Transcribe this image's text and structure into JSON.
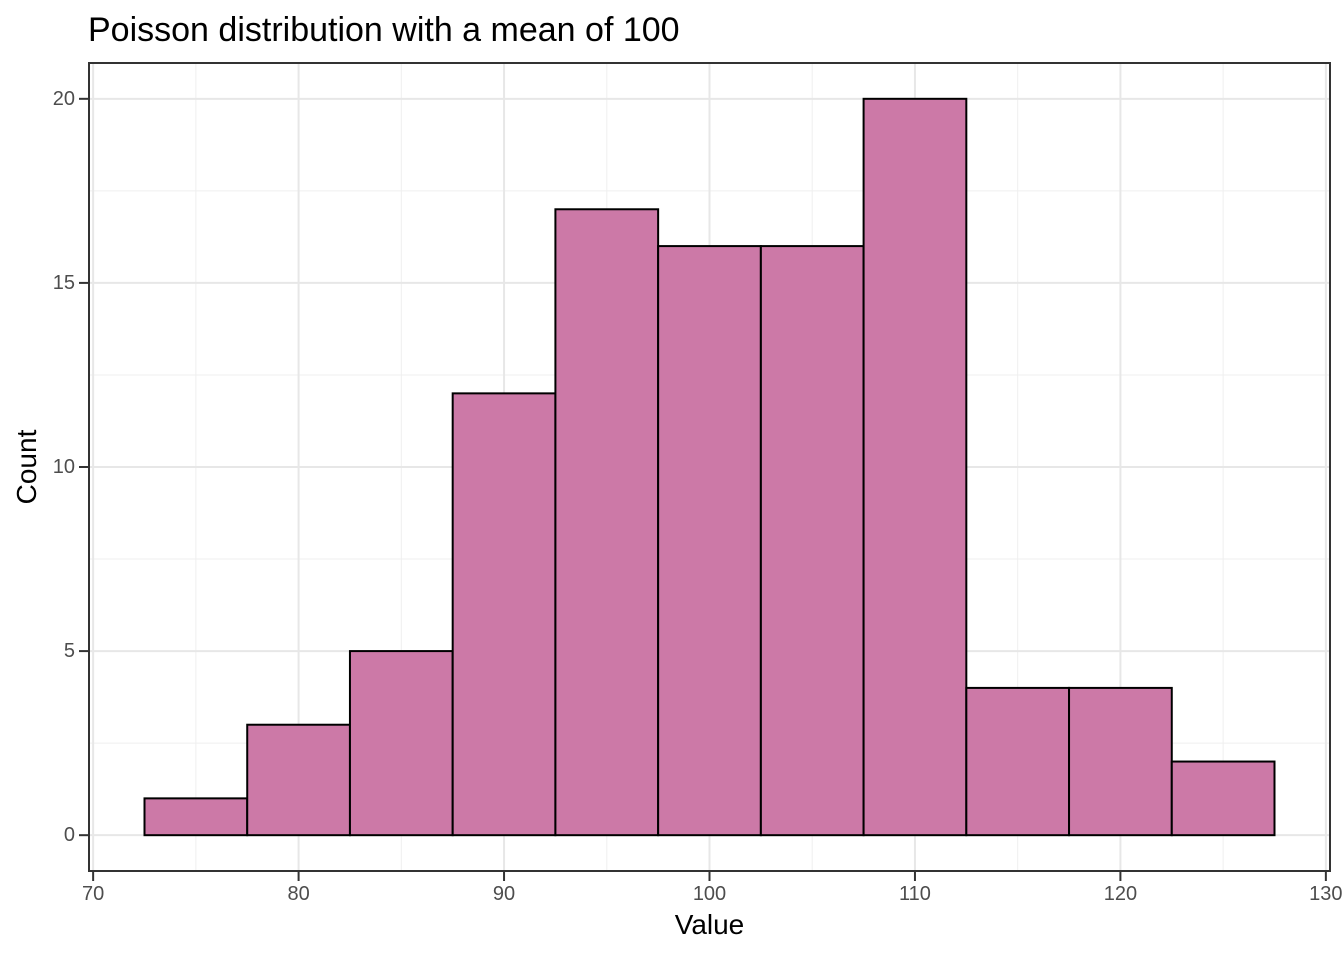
{
  "chart_data": {
    "type": "bar",
    "subtype": "histogram",
    "title": "Poisson distribution with a mean of 100",
    "xlabel": "Value",
    "ylabel": "Count",
    "bin_width": 5,
    "bin_edges": [
      72.5,
      77.5,
      82.5,
      87.5,
      92.5,
      97.5,
      102.5,
      107.5,
      112.5,
      117.5,
      122.5,
      127.5
    ],
    "bin_centers": [
      75,
      80,
      85,
      90,
      95,
      100,
      105,
      110,
      115,
      120,
      125
    ],
    "counts": [
      1,
      3,
      5,
      12,
      17,
      16,
      16,
      20,
      4,
      4,
      2
    ],
    "total_observations": 100,
    "x_ticks": [
      70,
      80,
      90,
      100,
      110,
      120,
      130
    ],
    "y_ticks": [
      0,
      5,
      10,
      15,
      20
    ],
    "x_minor_ticks": [
      75,
      85,
      95,
      105,
      115,
      125
    ],
    "y_minor_ticks": [
      2.5,
      7.5,
      12.5,
      17.5
    ],
    "xlim": [
      69.75,
      130.25
    ],
    "ylim": [
      -1,
      21
    ],
    "grid": true,
    "legend_position": "none",
    "bar_fill": "#CC79A7",
    "bar_stroke": "#000000",
    "style": {
      "panel_background": "#FFFFFF",
      "panel_border": "#333333",
      "grid_major": "#E7E7E7",
      "grid_minor": "#EFEFEF",
      "tick_color": "#333333",
      "tick_label_color": "#4D4D4D",
      "title_color": "#000000",
      "axis_title_color": "#000000"
    }
  }
}
